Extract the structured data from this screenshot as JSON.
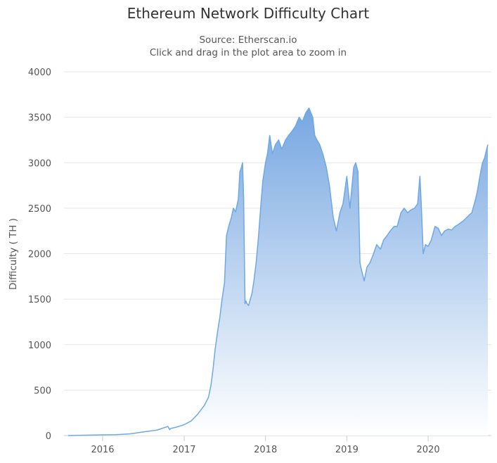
{
  "chart_data": {
    "type": "area",
    "title": "Ethereum Network Difficulty Chart",
    "subtitle": "Source: Etherscan.io",
    "hint": "Click and drag in the plot area to zoom in",
    "ylabel": "Difficulty ( TH )",
    "xlabel": "",
    "ylim": [
      0,
      4000
    ],
    "yticks": [
      0,
      500,
      1000,
      1500,
      2000,
      2500,
      3000,
      3500,
      4000
    ],
    "xticks": [
      "2016",
      "2017",
      "2018",
      "2019",
      "2020"
    ],
    "grid": true,
    "legend": "none",
    "colors": {
      "line": "#6fa8e3",
      "fill_top": "#6fa2e0",
      "fill_bottom": "#ffffff"
    },
    "series": [
      {
        "x": [
          "2015-07-30",
          "2015-09-01",
          "2015-11-01",
          "2016-01-01",
          "2016-03-01",
          "2016-05-01",
          "2016-07-01",
          "2016-09-01",
          "2016-10-20",
          "2016-10-28",
          "2016-11-01",
          "2016-12-01",
          "2017-01-01",
          "2017-02-01",
          "2017-03-01",
          "2017-04-01",
          "2017-04-20",
          "2017-05-01",
          "2017-05-10",
          "2017-05-20",
          "2017-06-01",
          "2017-06-10",
          "2017-06-20",
          "2017-07-01",
          "2017-07-10",
          "2017-07-20",
          "2017-08-01",
          "2017-08-10",
          "2017-08-20",
          "2017-09-01",
          "2017-09-08",
          "2017-09-15",
          "2017-09-20",
          "2017-09-25",
          "2017-10-01",
          "2017-10-05",
          "2017-10-10",
          "2017-10-17",
          "2017-10-25",
          "2017-11-01",
          "2017-11-10",
          "2017-11-20",
          "2017-12-01",
          "2017-12-10",
          "2017-12-20",
          "2018-01-01",
          "2018-01-10",
          "2018-01-20",
          "2018-02-01",
          "2018-02-15",
          "2018-03-01",
          "2018-03-15",
          "2018-04-01",
          "2018-04-15",
          "2018-05-01",
          "2018-05-15",
          "2018-06-01",
          "2018-06-15",
          "2018-07-01",
          "2018-07-15",
          "2018-08-01",
          "2018-08-10",
          "2018-08-20",
          "2018-09-01",
          "2018-09-15",
          "2018-10-01",
          "2018-10-15",
          "2018-11-01",
          "2018-11-15",
          "2018-12-01",
          "2018-12-15",
          "2019-01-01",
          "2019-01-15",
          "2019-02-01",
          "2019-02-10",
          "2019-02-20",
          "2019-03-01",
          "2019-03-05",
          "2019-03-10",
          "2019-03-20",
          "2019-04-01",
          "2019-04-15",
          "2019-05-01",
          "2019-05-15",
          "2019-06-01",
          "2019-06-15",
          "2019-07-01",
          "2019-07-15",
          "2019-08-01",
          "2019-08-15",
          "2019-09-01",
          "2019-09-15",
          "2019-10-01",
          "2019-10-15",
          "2019-11-01",
          "2019-11-15",
          "2019-11-25",
          "2019-12-01",
          "2019-12-10",
          "2019-12-20",
          "2020-01-01",
          "2020-01-15",
          "2020-02-01",
          "2020-02-15",
          "2020-03-01",
          "2020-03-15",
          "2020-04-01",
          "2020-04-15",
          "2020-05-01",
          "2020-05-15",
          "2020-06-01",
          "2020-06-15",
          "2020-07-01",
          "2020-07-15",
          "2020-08-01",
          "2020-08-10",
          "2020-08-20",
          "2020-09-01",
          "2020-09-10",
          "2020-09-20",
          "2020-09-25"
        ],
        "values": [
          0.1,
          2,
          5,
          8,
          10,
          18,
          40,
          60,
          100,
          65,
          78,
          95,
          120,
          160,
          230,
          330,
          420,
          550,
          720,
          950,
          1160,
          1300,
          1500,
          1680,
          2200,
          2300,
          2400,
          2500,
          2460,
          2600,
          2900,
          2950,
          3000,
          2600,
          1450,
          1480,
          1450,
          1430,
          1500,
          1560,
          1700,
          1900,
          2200,
          2500,
          2800,
          3000,
          3100,
          3300,
          3100,
          3200,
          3250,
          3150,
          3250,
          3300,
          3350,
          3400,
          3500,
          3450,
          3550,
          3600,
          3500,
          3300,
          3250,
          3200,
          3100,
          2950,
          2750,
          2400,
          2250,
          2450,
          2550,
          2850,
          2500,
          2950,
          3000,
          2900,
          1900,
          1850,
          1800,
          1700,
          1850,
          1900,
          2000,
          2100,
          2050,
          2150,
          2200,
          2250,
          2300,
          2300,
          2450,
          2500,
          2450,
          2480,
          2500,
          2550,
          2850,
          2550,
          2000,
          2100,
          2080,
          2150,
          2300,
          2280,
          2200,
          2250,
          2270,
          2260,
          2300,
          2320,
          2350,
          2380,
          2420,
          2450,
          2600,
          2700,
          2850,
          3000,
          3050,
          3150,
          3200
        ]
      }
    ]
  }
}
